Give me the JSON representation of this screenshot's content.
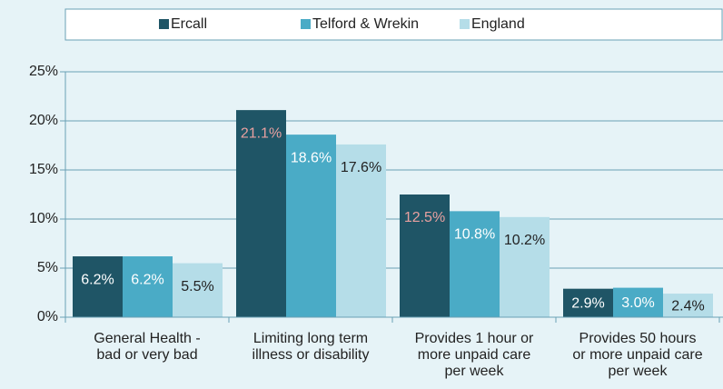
{
  "chart_data": {
    "type": "bar",
    "categories": [
      [
        "General Health -",
        "bad or very bad"
      ],
      [
        "Limiting long term",
        "illness or disability"
      ],
      [
        "Provides 1 hour or",
        "more unpaid care",
        "per week"
      ],
      [
        "Provides 50 hours",
        "or more unpaid care",
        "per week"
      ]
    ],
    "series": [
      {
        "name": "Ercall",
        "color": "#1f5566",
        "label_colors": [
          "#ffffff",
          "#e8a0a0",
          "#e8a0a0",
          "#ffffff"
        ],
        "values": [
          6.2,
          21.1,
          12.5,
          2.9
        ],
        "value_labels": [
          "6.2%",
          "21.1%",
          "12.5%",
          "2.9%"
        ]
      },
      {
        "name": "Telford & Wrekin",
        "color": "#4aabc6",
        "label_colors": [
          "#ffffff",
          "#ffffff",
          "#ffffff",
          "#ffffff"
        ],
        "values": [
          6.2,
          18.6,
          10.8,
          3.0
        ],
        "value_labels": [
          "6.2%",
          "18.6%",
          "10.8%",
          "3.0%"
        ]
      },
      {
        "name": "England",
        "color": "#b5dde8",
        "label_colors": [
          "#222222",
          "#222222",
          "#222222",
          "#222222"
        ],
        "values": [
          5.5,
          17.6,
          10.2,
          2.4
        ],
        "value_labels": [
          "5.5%",
          "17.6%",
          "10.2%",
          "2.4%"
        ]
      }
    ],
    "ylim": [
      0,
      25
    ],
    "yticks": [
      {
        "value": 0,
        "label": "0%"
      },
      {
        "value": 5,
        "label": "5%"
      },
      {
        "value": 10,
        "label": "10%"
      },
      {
        "value": 15,
        "label": "15%"
      },
      {
        "value": 20,
        "label": "20%"
      },
      {
        "value": 25,
        "label": "25%"
      }
    ],
    "grid": true,
    "legend": "top"
  }
}
